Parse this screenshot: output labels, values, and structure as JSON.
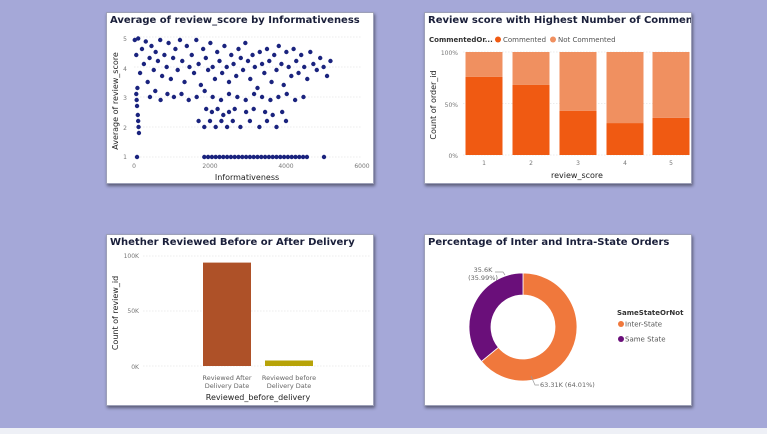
{
  "colors": {
    "scatter": "#1a237e",
    "commented": "#f05a12",
    "not_commented": "#f09060",
    "after": "#ae5128",
    "before": "#b7a308",
    "inter": "#f0783c",
    "same": "#6a0f7a"
  },
  "charts": {
    "scatter": {
      "title": "Average of review_score by Informativeness",
      "xlabel": "Informativeness",
      "ylabel": "Average of review_score",
      "xticks": [
        "0",
        "2000",
        "4000",
        "6000"
      ],
      "yticks": [
        "1",
        "2",
        "3",
        "4",
        "5"
      ]
    },
    "stacked": {
      "title": "Review score with Highest Number of Comments",
      "legend_title": "CommentedOr...",
      "legend": [
        "Commented",
        "Not Commented"
      ],
      "xlabel": "review_score",
      "ylabel": "Count of order_id",
      "yticks": [
        "0%",
        "50%",
        "100%"
      ],
      "categories": [
        "1",
        "2",
        "3",
        "4",
        "5"
      ]
    },
    "bar": {
      "title": "Whether Reviewed Before or After Delivery",
      "xlabel": "Reviewed_before_delivery",
      "ylabel": "Count of review_id",
      "yticks": [
        "0K",
        "50K",
        "100K"
      ],
      "cat1_line1": "Reviewed After",
      "cat1_line2": "Delivery Date",
      "cat2_line1": "Reviewed before",
      "cat2_line2": "Delivery Date"
    },
    "donut": {
      "title": "Percentage of Inter and Intra-State Orders",
      "legend_title": "SameStateOrNot",
      "legend": [
        "Inter-State",
        "Same State"
      ],
      "label_inter": "63.31K (64.01%)",
      "label_same_1": "35.6K",
      "label_same_2": "(35.99%)"
    }
  },
  "chart_data": [
    {
      "type": "scatter",
      "title": "Average of review_score by Informativeness",
      "xlabel": "Informativeness",
      "ylabel": "Average of review_score",
      "xlim": [
        0,
        6000
      ],
      "ylim": [
        1,
        5
      ],
      "points": [
        [
          20,
          4.9
        ],
        [
          60,
          4.4
        ],
        [
          110,
          4.95
        ],
        [
          160,
          3.8
        ],
        [
          210,
          4.6
        ],
        [
          260,
          4.1
        ],
        [
          310,
          4.85
        ],
        [
          360,
          3.5
        ],
        [
          410,
          4.3
        ],
        [
          460,
          4.7
        ],
        [
          520,
          3.9
        ],
        [
          570,
          4.5
        ],
        [
          630,
          4.2
        ],
        [
          690,
          4.9
        ],
        [
          740,
          3.7
        ],
        [
          800,
          4.4
        ],
        [
          860,
          4.0
        ],
        [
          910,
          4.8
        ],
        [
          970,
          3.6
        ],
        [
          1030,
          4.3
        ],
        [
          1090,
          4.6
        ],
        [
          1150,
          3.9
        ],
        [
          1210,
          4.9
        ],
        [
          1270,
          4.2
        ],
        [
          1330,
          3.5
        ],
        [
          1390,
          4.7
        ],
        [
          1460,
          4.0
        ],
        [
          1520,
          4.4
        ],
        [
          1580,
          3.8
        ],
        [
          1640,
          4.9
        ],
        [
          1700,
          4.1
        ],
        [
          1760,
          3.4
        ],
        [
          1820,
          4.6
        ],
        [
          1890,
          4.3
        ],
        [
          1950,
          3.9
        ],
        [
          2010,
          4.8
        ],
        [
          2070,
          4.0
        ],
        [
          2130,
          3.6
        ],
        [
          2190,
          4.5
        ],
        [
          2250,
          4.2
        ],
        [
          2320,
          3.8
        ],
        [
          2380,
          4.7
        ],
        [
          2440,
          4.0
        ],
        [
          2500,
          3.5
        ],
        [
          2560,
          4.4
        ],
        [
          2620,
          4.1
        ],
        [
          2690,
          3.7
        ],
        [
          2750,
          4.6
        ],
        [
          2810,
          4.3
        ],
        [
          2870,
          3.9
        ],
        [
          2930,
          4.8
        ],
        [
          3000,
          4.2
        ],
        [
          3060,
          3.6
        ],
        [
          3120,
          4.4
        ],
        [
          3180,
          4.0
        ],
        [
          3250,
          3.3
        ],
        [
          3310,
          4.5
        ],
        [
          3370,
          4.1
        ],
        [
          3430,
          3.8
        ],
        [
          3500,
          4.6
        ],
        [
          3560,
          4.2
        ],
        [
          3620,
          3.5
        ],
        [
          3690,
          4.4
        ],
        [
          3750,
          3.9
        ],
        [
          3810,
          4.7
        ],
        [
          3880,
          4.1
        ],
        [
          3940,
          3.4
        ],
        [
          4010,
          4.5
        ],
        [
          4070,
          4.0
        ],
        [
          4140,
          3.7
        ],
        [
          4200,
          4.6
        ],
        [
          4270,
          4.2
        ],
        [
          4330,
          3.8
        ],
        [
          4400,
          4.4
        ],
        [
          4480,
          4.0
        ],
        [
          4560,
          3.6
        ],
        [
          4640,
          4.5
        ],
        [
          4720,
          4.1
        ],
        [
          4810,
          3.9
        ],
        [
          4900,
          4.3
        ],
        [
          4990,
          4.0
        ],
        [
          5080,
          3.7
        ],
        [
          5170,
          4.2
        ],
        [
          60,
          3.1
        ],
        [
          80,
          2.7
        ],
        [
          100,
          2.4
        ],
        [
          120,
          2.0
        ],
        [
          90,
          3.3
        ],
        [
          70,
          2.9
        ],
        [
          110,
          2.2
        ],
        [
          130,
          1.8
        ],
        [
          420,
          3.0
        ],
        [
          560,
          3.2
        ],
        [
          700,
          2.9
        ],
        [
          880,
          3.1
        ],
        [
          1050,
          3.0
        ],
        [
          1250,
          3.1
        ],
        [
          1440,
          2.9
        ],
        [
          1650,
          3.0
        ],
        [
          1860,
          3.2
        ],
        [
          2070,
          3.0
        ],
        [
          2290,
          2.9
        ],
        [
          2500,
          3.1
        ],
        [
          2720,
          3.0
        ],
        [
          2940,
          2.9
        ],
        [
          3160,
          3.1
        ],
        [
          3370,
          3.0
        ],
        [
          3590,
          2.9
        ],
        [
          3800,
          3.0
        ],
        [
          4020,
          3.1
        ],
        [
          4240,
          2.9
        ],
        [
          4460,
          3.0
        ],
        [
          1900,
          2.6
        ],
        [
          2050,
          2.5
        ],
        [
          2200,
          2.6
        ],
        [
          2350,
          2.4
        ],
        [
          2500,
          2.5
        ],
        [
          2650,
          2.6
        ],
        [
          2950,
          2.5
        ],
        [
          3150,
          2.6
        ],
        [
          3450,
          2.5
        ],
        [
          3650,
          2.4
        ],
        [
          3900,
          2.5
        ],
        [
          1700,
          2.2
        ],
        [
          1850,
          2.0
        ],
        [
          2000,
          2.2
        ],
        [
          2150,
          2.0
        ],
        [
          2300,
          2.2
        ],
        [
          2450,
          2.0
        ],
        [
          2600,
          2.2
        ],
        [
          2800,
          2.0
        ],
        [
          3050,
          2.2
        ],
        [
          3300,
          2.0
        ],
        [
          3500,
          2.2
        ],
        [
          3750,
          2.0
        ],
        [
          4000,
          2.2
        ],
        [
          80,
          1.0
        ],
        [
          1850,
          1.0
        ],
        [
          1950,
          1.0
        ],
        [
          2050,
          1.0
        ],
        [
          2150,
          1.0
        ],
        [
          2250,
          1.0
        ],
        [
          2350,
          1.0
        ],
        [
          2450,
          1.0
        ],
        [
          2550,
          1.0
        ],
        [
          2650,
          1.0
        ],
        [
          2750,
          1.0
        ],
        [
          2850,
          1.0
        ],
        [
          2950,
          1.0
        ],
        [
          3050,
          1.0
        ],
        [
          3150,
          1.0
        ],
        [
          3250,
          1.0
        ],
        [
          3350,
          1.0
        ],
        [
          3450,
          1.0
        ],
        [
          3550,
          1.0
        ],
        [
          3650,
          1.0
        ],
        [
          3750,
          1.0
        ],
        [
          3850,
          1.0
        ],
        [
          3950,
          1.0
        ],
        [
          4050,
          1.0
        ],
        [
          4150,
          1.0
        ],
        [
          4250,
          1.0
        ],
        [
          4350,
          1.0
        ],
        [
          4450,
          1.0
        ],
        [
          4550,
          1.0
        ],
        [
          5000,
          1.0
        ]
      ]
    },
    {
      "type": "bar",
      "title": "Review score with Highest Number of Comments",
      "categories": [
        "1",
        "2",
        "3",
        "4",
        "5"
      ],
      "series": [
        {
          "name": "Commented",
          "values": [
            0.76,
            0.68,
            0.43,
            0.31,
            0.36
          ]
        },
        {
          "name": "Not Commented",
          "values": [
            0.24,
            0.32,
            0.57,
            0.69,
            0.64
          ]
        }
      ],
      "xlabel": "review_score",
      "ylabel": "Count of order_id",
      "ylim": [
        0,
        1
      ]
    },
    {
      "type": "bar",
      "title": "Whether Reviewed Before or After Delivery",
      "categories": [
        "Reviewed After Delivery Date",
        "Reviewed before Delivery Date"
      ],
      "values": [
        94000,
        5000
      ],
      "xlabel": "Reviewed_before_delivery",
      "ylabel": "Count of review_id",
      "ylim": [
        0,
        100000
      ]
    },
    {
      "type": "pie",
      "title": "Percentage of Inter and Intra-State Orders",
      "categories": [
        "Inter-State",
        "Same State"
      ],
      "values": [
        63310,
        35600
      ]
    }
  ]
}
